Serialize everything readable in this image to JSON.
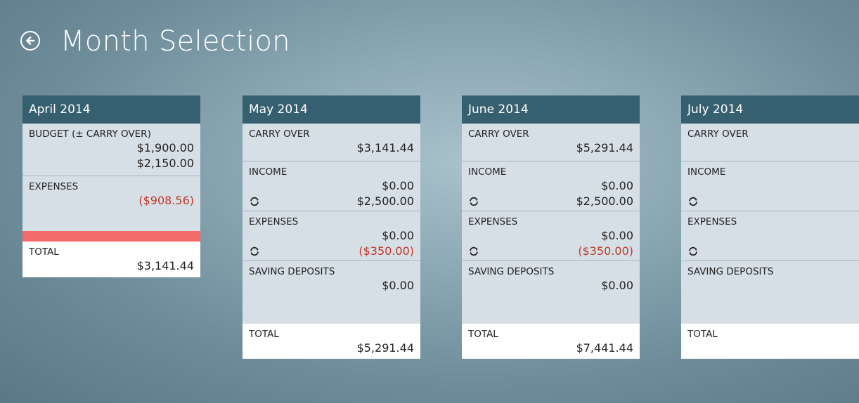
{
  "header": {
    "title": "Month Selection"
  },
  "colors": {
    "header_bg": "#36606f",
    "negative": "#c0392b",
    "over_budget_bar": "#f26a6a",
    "section_bg": "#d5dfe5"
  },
  "months": [
    {
      "name": "April 2014",
      "budget_label": "BUDGET (± CARRY OVER)",
      "budget_value1": "$1,900.00",
      "budget_value2": "$2,150.00",
      "expenses_label": "EXPENSES",
      "expenses_value": "($908.56)",
      "total_label": "TOTAL",
      "total_value": "$3,141.44"
    },
    {
      "name": "May 2014",
      "carry_label": "CARRY OVER",
      "carry_value": "$3,141.44",
      "income_label": "INCOME",
      "income_value": "$0.00",
      "income_recurring": "$2,500.00",
      "expenses_label": "EXPENSES",
      "expenses_value": "$0.00",
      "expenses_recurring": "($350.00)",
      "savings_label": "SAVING DEPOSITS",
      "savings_value": "$0.00",
      "total_label": "TOTAL",
      "total_value": "$5,291.44"
    },
    {
      "name": "June 2014",
      "carry_label": "CARRY OVER",
      "carry_value": "$5,291.44",
      "income_label": "INCOME",
      "income_value": "$0.00",
      "income_recurring": "$2,500.00",
      "expenses_label": "EXPENSES",
      "expenses_value": "$0.00",
      "expenses_recurring": "($350.00)",
      "savings_label": "SAVING DEPOSITS",
      "savings_value": "$0.00",
      "total_label": "TOTAL",
      "total_value": "$7,441.44"
    },
    {
      "name": "July 2014",
      "carry_label": "CARRY OVER",
      "income_label": "INCOME",
      "expenses_label": "EXPENSES",
      "savings_label": "SAVING DEPOSITS",
      "total_label": "TOTAL"
    }
  ]
}
